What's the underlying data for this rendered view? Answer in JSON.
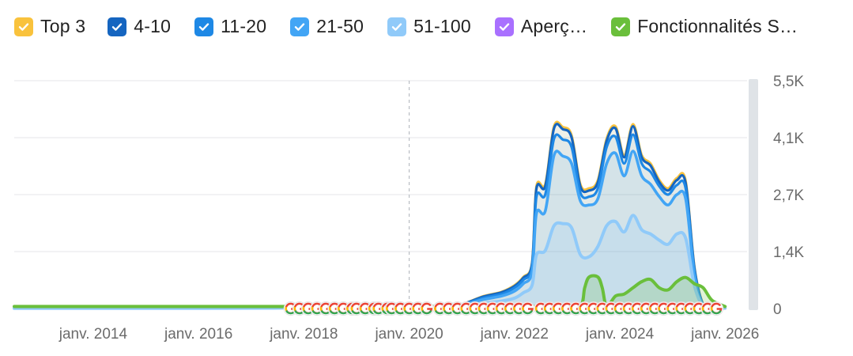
{
  "legend": [
    {
      "label": "Top 3",
      "color": "#f9c23c",
      "icon": "check-icon"
    },
    {
      "label": "4-10",
      "color": "#1565c0",
      "icon": "check-icon"
    },
    {
      "label": "11-20",
      "color": "#1e88e5",
      "icon": "check-icon"
    },
    {
      "label": "21-50",
      "color": "#42a5f5",
      "icon": "check-icon"
    },
    {
      "label": "51-100",
      "color": "#90caf9",
      "icon": "check-icon"
    },
    {
      "label": "Aperç…",
      "color": "#a970ff",
      "icon": "check-icon"
    },
    {
      "label": "Fonctionnalités S…",
      "color": "#6abf3b",
      "icon": "check-icon"
    }
  ],
  "chart_data": {
    "type": "area",
    "x_ticks": [
      "janv. 2014",
      "janv. 2016",
      "janv. 2018",
      "janv. 2020",
      "janv. 2022",
      "janv. 2024",
      "janv. 2026"
    ],
    "y_ticks": [
      "0",
      "1,4K",
      "2,7K",
      "4,1K",
      "5,5K"
    ],
    "ylim": [
      0,
      5500
    ],
    "xlim": [
      "2012-07",
      "2026-06"
    ],
    "grid": true,
    "annotation_date": "2020-01",
    "series": [
      {
        "name": "Top 3",
        "color": "#f9c23c",
        "x": [
          "2012-07",
          "2016-01",
          "2017-06",
          "2018-01",
          "2019-01",
          "2020-01",
          "2020-10",
          "2021-01",
          "2021-06",
          "2021-10",
          "2022-01",
          "2022-03",
          "2022-05",
          "2022-06",
          "2022-08",
          "2022-10",
          "2022-12",
          "2023-02",
          "2023-04",
          "2023-06",
          "2023-08",
          "2023-10",
          "2023-12",
          "2024-02",
          "2024-04",
          "2024-06",
          "2024-08",
          "2024-10",
          "2024-12",
          "2025-02",
          "2025-04",
          "2025-06",
          "2025-08",
          "2025-10",
          "2026-01"
        ],
        "values": [
          10,
          10,
          20,
          40,
          50,
          40,
          60,
          100,
          300,
          400,
          560,
          760,
          1100,
          2950,
          3000,
          4400,
          4380,
          4180,
          3000,
          2900,
          3100,
          4100,
          4400,
          3700,
          4450,
          3700,
          3500,
          3100,
          2900,
          3150,
          3080,
          1000,
          100,
          30,
          20
        ]
      },
      {
        "name": "4-10",
        "color": "#1565c0",
        "x": [
          "2012-07",
          "2016-01",
          "2017-06",
          "2018-01",
          "2019-01",
          "2020-01",
          "2020-10",
          "2021-01",
          "2021-06",
          "2021-10",
          "2022-01",
          "2022-03",
          "2022-05",
          "2022-06",
          "2022-08",
          "2022-10",
          "2022-12",
          "2023-02",
          "2023-04",
          "2023-06",
          "2023-08",
          "2023-10",
          "2023-12",
          "2024-02",
          "2024-04",
          "2024-06",
          "2024-08",
          "2024-10",
          "2024-12",
          "2025-02",
          "2025-04",
          "2025-06",
          "2025-08",
          "2025-10",
          "2026-01"
        ],
        "values": [
          10,
          10,
          20,
          40,
          50,
          40,
          60,
          100,
          290,
          390,
          540,
          740,
          1080,
          2900,
          2950,
          4350,
          4330,
          4130,
          2950,
          2850,
          3050,
          4050,
          4350,
          3650,
          4400,
          3650,
          3450,
          3050,
          2850,
          3100,
          3030,
          980,
          90,
          30,
          20
        ]
      },
      {
        "name": "11-20",
        "color": "#1e88e5",
        "x": [
          "2012-07",
          "2016-01",
          "2017-06",
          "2018-01",
          "2019-01",
          "2020-01",
          "2020-10",
          "2021-01",
          "2021-06",
          "2021-10",
          "2022-01",
          "2022-03",
          "2022-05",
          "2022-06",
          "2022-08",
          "2022-10",
          "2022-12",
          "2023-02",
          "2023-04",
          "2023-06",
          "2023-08",
          "2023-10",
          "2023-12",
          "2024-02",
          "2024-04",
          "2024-06",
          "2024-08",
          "2024-10",
          "2024-12",
          "2025-02",
          "2025-04",
          "2025-06",
          "2025-08",
          "2025-10",
          "2026-01"
        ],
        "values": [
          10,
          10,
          20,
          35,
          45,
          35,
          55,
          90,
          260,
          350,
          500,
          690,
          1000,
          2700,
          2750,
          4100,
          4080,
          3900,
          2800,
          2700,
          2900,
          3900,
          4150,
          3500,
          4200,
          3500,
          3300,
          2950,
          2750,
          2980,
          2900,
          900,
          80,
          25,
          15
        ]
      },
      {
        "name": "21-50",
        "color": "#42a5f5",
        "x": [
          "2012-07",
          "2016-01",
          "2017-06",
          "2018-01",
          "2019-01",
          "2020-01",
          "2020-10",
          "2021-01",
          "2021-06",
          "2021-10",
          "2022-01",
          "2022-03",
          "2022-05",
          "2022-06",
          "2022-08",
          "2022-10",
          "2022-12",
          "2023-02",
          "2023-04",
          "2023-06",
          "2023-08",
          "2023-10",
          "2023-12",
          "2024-02",
          "2024-04",
          "2024-06",
          "2024-08",
          "2024-10",
          "2024-12",
          "2025-02",
          "2025-04",
          "2025-06",
          "2025-08",
          "2025-10",
          "2026-01"
        ],
        "values": [
          8,
          8,
          15,
          30,
          40,
          30,
          45,
          80,
          220,
          300,
          420,
          600,
          880,
          2300,
          2350,
          3700,
          3680,
          3500,
          2600,
          2500,
          2650,
          3500,
          3750,
          3200,
          3800,
          3200,
          3000,
          2700,
          2500,
          2750,
          2650,
          800,
          70,
          20,
          12
        ]
      },
      {
        "name": "51-100",
        "color": "#90caf9",
        "x": [
          "2012-07",
          "2016-01",
          "2017-06",
          "2018-01",
          "2019-01",
          "2020-01",
          "2020-10",
          "2021-01",
          "2021-06",
          "2021-10",
          "2022-01",
          "2022-03",
          "2022-05",
          "2022-06",
          "2022-08",
          "2022-10",
          "2022-12",
          "2023-02",
          "2023-04",
          "2023-06",
          "2023-08",
          "2023-10",
          "2023-12",
          "2024-02",
          "2024-04",
          "2024-06",
          "2024-08",
          "2024-10",
          "2024-12",
          "2025-02",
          "2025-04",
          "2025-06",
          "2025-08",
          "2025-10",
          "2026-01"
        ],
        "values": [
          5,
          5,
          10,
          20,
          25,
          20,
          30,
          50,
          130,
          180,
          250,
          380,
          560,
          1300,
          1400,
          2000,
          2050,
          1950,
          1300,
          1250,
          1500,
          2000,
          2100,
          1850,
          2250,
          1900,
          1800,
          1650,
          1550,
          1800,
          1700,
          550,
          50,
          15,
          8
        ]
      },
      {
        "name": "Fonctionnalités S…",
        "color": "#6abf3b",
        "x": [
          "2012-07",
          "2017-06",
          "2018-01",
          "2022-12",
          "2023-04",
          "2023-05",
          "2023-06",
          "2023-08",
          "2023-09",
          "2023-10",
          "2023-12",
          "2024-02",
          "2024-04",
          "2024-06",
          "2024-08",
          "2024-10",
          "2024-12",
          "2025-02",
          "2025-04",
          "2025-06",
          "2025-08",
          "2025-10",
          "2026-01"
        ],
        "values": [
          50,
          50,
          50,
          50,
          50,
          500,
          760,
          760,
          500,
          50,
          300,
          350,
          500,
          650,
          700,
          500,
          450,
          650,
          750,
          600,
          500,
          200,
          50
        ]
      }
    ],
    "markers": {
      "icon": "google-icon",
      "dates": [
        "2017-10",
        "2017-12",
        "2018-02",
        "2018-04",
        "2018-06",
        "2018-08",
        "2018-10",
        "2018-12",
        "2019-01",
        "2019-03",
        "2019-05",
        "2019-06",
        "2019-08",
        "2019-09",
        "2019-11",
        "2020-01",
        "2020-03",
        "2020-05",
        "2020-08",
        "2020-10",
        "2020-12",
        "2021-02",
        "2021-04",
        "2021-06",
        "2021-08",
        "2021-10",
        "2021-12",
        "2022-02",
        "2022-04",
        "2022-07",
        "2022-09",
        "2022-11",
        "2023-01",
        "2023-03",
        "2023-05",
        "2023-07",
        "2023-09",
        "2023-11",
        "2024-01",
        "2024-03",
        "2024-05",
        "2024-07",
        "2024-09",
        "2024-11",
        "2025-01",
        "2025-03",
        "2025-05",
        "2025-07",
        "2025-09",
        "2025-11"
      ]
    }
  }
}
